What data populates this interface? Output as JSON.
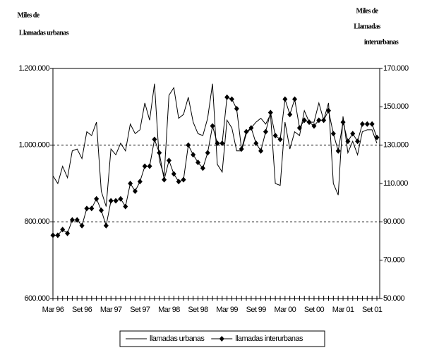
{
  "chart_data": {
    "type": "line",
    "y_label": [
      "Miles de",
      "Llamadas urbanas"
    ],
    "y2_label": [
      "Miles de",
      "Llamadas",
      "interurbanas"
    ],
    "categories": [
      "Mar 96",
      null,
      null,
      null,
      null,
      null,
      "Set 96",
      null,
      null,
      null,
      null,
      null,
      "Mar 97",
      null,
      null,
      null,
      null,
      null,
      "Set 97",
      null,
      null,
      null,
      null,
      null,
      "Mar 98",
      null,
      null,
      null,
      null,
      null,
      "Set 98",
      null,
      null,
      null,
      null,
      null,
      "Mar 99",
      null,
      null,
      null,
      null,
      null,
      "Set 99",
      null,
      null,
      null,
      null,
      null,
      "Mar 00",
      null,
      null,
      null,
      null,
      null,
      "Set 00",
      null,
      null,
      null,
      null,
      null,
      "Mar 01",
      null,
      null,
      null,
      null,
      null,
      "Set 01",
      null
    ],
    "series": [
      {
        "name": "llamadas urbanas",
        "color": "#000000",
        "marker": false,
        "values": [
          920000,
          900000,
          945000,
          915000,
          985000,
          990000,
          965000,
          1035000,
          1025000,
          1060000,
          880000,
          840000,
          990000,
          975000,
          1005000,
          985000,
          1055000,
          1030000,
          1040000,
          1110000,
          1065000,
          1160000,
          960000,
          920000,
          1130000,
          1150000,
          1070000,
          1080000,
          1125000,
          1060000,
          1030000,
          1025000,
          1070000,
          1160000,
          950000,
          930000,
          1065000,
          1045000,
          985000,
          985000,
          1030000,
          1045000,
          1060000,
          1070000,
          1055000,
          1080000,
          900000,
          895000,
          1060000,
          990000,
          1035000,
          1025000,
          1090000,
          1060000,
          1060000,
          1110000,
          1065000,
          1110000,
          900000,
          870000,
          1075000,
          980000,
          1010000,
          975000,
          1035000,
          1040000,
          1040000,
          1005000
        ]
      },
      {
        "name": "llamadas interurbanas",
        "color": "#000000",
        "marker": true,
        "axis": "y2",
        "values": [
          83000,
          83000,
          86000,
          84000,
          91000,
          91000,
          88000,
          97000,
          97000,
          102000,
          96000,
          88000,
          101000,
          101000,
          102000,
          98000,
          110000,
          106000,
          111000,
          119000,
          119000,
          133000,
          126000,
          112000,
          122000,
          115000,
          111000,
          112000,
          130000,
          125000,
          121000,
          118000,
          126000,
          140000,
          131000,
          131000,
          155000,
          154000,
          149000,
          128000,
          137000,
          139000,
          131000,
          127000,
          137000,
          147000,
          135000,
          133000,
          154000,
          146000,
          154000,
          139000,
          143000,
          142000,
          140000,
          143000,
          143000,
          148000,
          136000,
          127000,
          142000,
          132000,
          136000,
          132000,
          141000,
          141000,
          141000,
          134000
        ]
      }
    ],
    "ylim": [
      600000,
      1200000
    ],
    "yticks": [
      {
        "value": 600000,
        "label": "600.000"
      },
      {
        "value": 800000,
        "label": "800.000"
      },
      {
        "value": 1000000,
        "label": "1.000.000"
      },
      {
        "value": 1200000,
        "label": "1.200.000"
      }
    ],
    "y2lim": [
      50000,
      170000
    ],
    "y2ticks": [
      {
        "value": 50000,
        "label": "50.000"
      },
      {
        "value": 70000,
        "label": "70.000"
      },
      {
        "value": 90000,
        "label": "90.000"
      },
      {
        "value": 110000,
        "label": "110.000"
      },
      {
        "value": 130000,
        "label": "130.000"
      },
      {
        "value": 150000,
        "label": "150.000"
      },
      {
        "value": 170000,
        "label": "170.000"
      }
    ],
    "grid": true,
    "legend": "bottom"
  }
}
